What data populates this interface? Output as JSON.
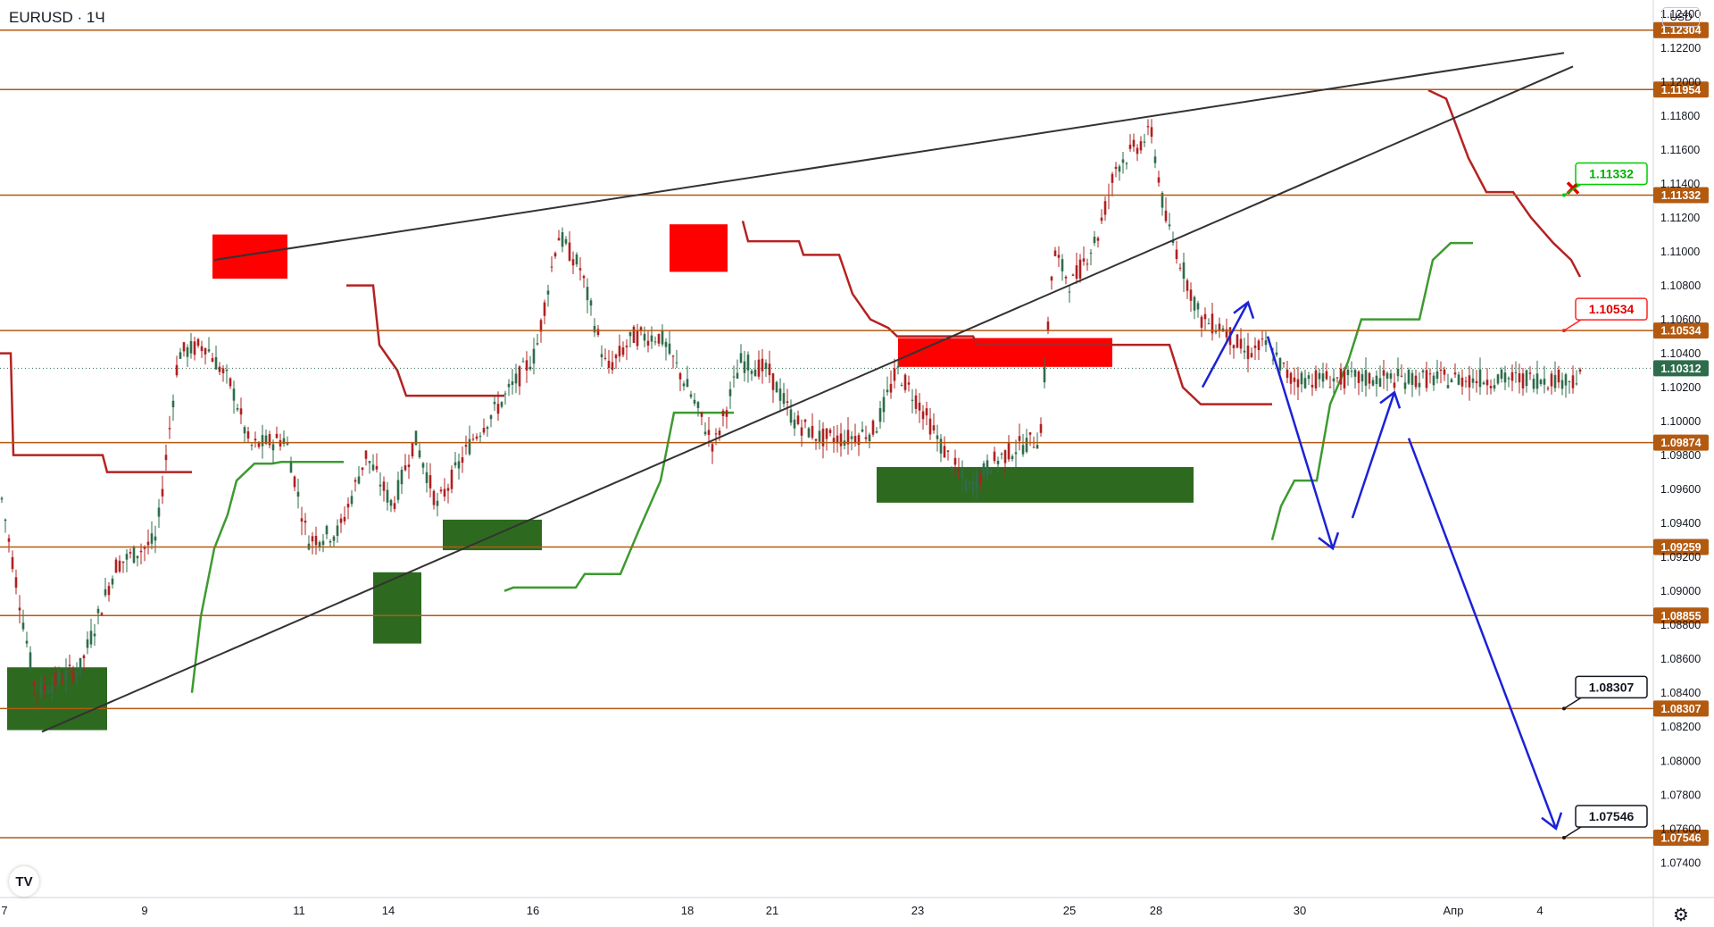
{
  "header": {
    "ticker": "EURUSD · 1Ч",
    "currency": "USD"
  },
  "colors": {
    "level": "#b35a11",
    "trend": "#333333",
    "bull": "#4a8f3a",
    "bear": "#c23a3a",
    "stop_up": "#3d9a30",
    "stop_down": "#b52222",
    "zone_green": "#2d6a1f",
    "zone_red": "#ff0000",
    "arrow": "#1b22d6",
    "candle_up": "#2e6d4b",
    "candle_down": "#b02020"
  },
  "chart_data": {
    "type": "line",
    "title": "",
    "price_axis": {
      "ticks": [
        "1.12400",
        "1.12200",
        "1.12000",
        "1.11800",
        "1.11600",
        "1.11400",
        "1.11200",
        "1.11000",
        "1.10800",
        "1.10600",
        "1.10400",
        "1.10200",
        "1.10000",
        "1.09800",
        "1.09600",
        "1.09400",
        "1.09200",
        "1.09000",
        "1.08800",
        "1.08600",
        "1.08400",
        "1.08200",
        "1.08000",
        "1.07800",
        "1.07600",
        "1.07400"
      ],
      "ylim": [
        1.0722,
        1.1245
      ]
    },
    "time_axis": {
      "labels": [
        "7",
        "9",
        "11",
        "14",
        "16",
        "18",
        "21",
        "23",
        "25",
        "28",
        "30",
        "Апр",
        "4"
      ]
    },
    "current_price": "1.10312",
    "levels": [
      "1.12304",
      "1.11954",
      "1.11332",
      "1.10534",
      "1.09874",
      "1.09259",
      "1.08855",
      "1.08307",
      "1.07546"
    ],
    "callouts": [
      {
        "text": "1.11332",
        "style": "green",
        "level": 1.11332
      },
      {
        "text": "1.10534",
        "style": "red",
        "level": 1.10534
      },
      {
        "text": "1.08307",
        "style": "dark",
        "level": 1.08307
      },
      {
        "text": "1.07546",
        "style": "dark",
        "level": 1.07546
      }
    ],
    "close_series": [
      [
        0,
        1.096
      ],
      [
        40,
        1.084
      ],
      [
        90,
        1.0855
      ],
      [
        130,
        1.0915
      ],
      [
        175,
        1.093
      ],
      [
        200,
        1.104
      ],
      [
        230,
        1.1045
      ],
      [
        260,
        1.102
      ],
      [
        280,
        1.0985
      ],
      [
        320,
        1.099
      ],
      [
        345,
        1.093
      ],
      [
        380,
        1.0935
      ],
      [
        410,
        1.098
      ],
      [
        440,
        1.095
      ],
      [
        465,
        1.099
      ],
      [
        490,
        1.095
      ],
      [
        530,
        1.099
      ],
      [
        560,
        1.101
      ],
      [
        600,
        1.104
      ],
      [
        625,
        1.111
      ],
      [
        650,
        1.109
      ],
      [
        680,
        1.103
      ],
      [
        710,
        1.105
      ],
      [
        740,
        1.105
      ],
      [
        770,
        1.102
      ],
      [
        800,
        1.0985
      ],
      [
        830,
        1.1035
      ],
      [
        860,
        1.103
      ],
      [
        890,
        1.1
      ],
      [
        920,
        1.099
      ],
      [
        950,
        1.099
      ],
      [
        980,
        1.0995
      ],
      [
        1005,
        1.103
      ],
      [
        1030,
        1.101
      ],
      [
        1055,
        1.0985
      ],
      [
        1085,
        1.096
      ],
      [
        1110,
        1.0975
      ],
      [
        1140,
        1.0985
      ],
      [
        1165,
        1.099
      ],
      [
        1180,
        1.11
      ],
      [
        1200,
        1.108
      ],
      [
        1230,
        1.111
      ],
      [
        1250,
        1.115
      ],
      [
        1270,
        1.116
      ],
      [
        1290,
        1.117
      ],
      [
        1305,
        1.112
      ],
      [
        1325,
        1.109
      ],
      [
        1345,
        1.106
      ],
      [
        1370,
        1.1055
      ],
      [
        1395,
        1.104
      ],
      [
        1420,
        1.1045
      ],
      [
        1445,
        1.1025
      ]
    ]
  }
}
